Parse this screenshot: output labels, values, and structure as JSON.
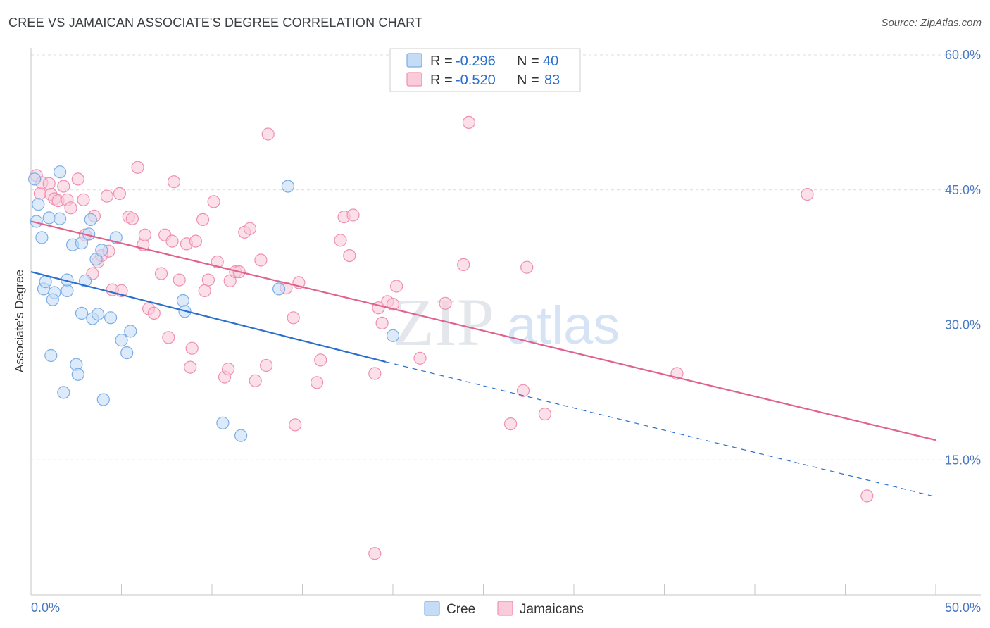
{
  "title": "CREE VS JAMAICAN ASSOCIATE'S DEGREE CORRELATION CHART",
  "source": "Source: ZipAtlas.com",
  "watermark": {
    "zip": "ZIP",
    "atlas": "atlas"
  },
  "legend_top": [
    {
      "r_label": "R =",
      "r_value": "-0.296",
      "n_label": "N =",
      "n_value": "40",
      "color": "#7aaee8",
      "fill": "#c5dcf7"
    },
    {
      "r_label": "R =",
      "r_value": "-0.520",
      "n_label": "N =",
      "n_value": "83",
      "color": "#ef8fb0",
      "fill": "#f9cbdb"
    }
  ],
  "legend_bottom": [
    {
      "label": "Cree",
      "color": "#7aaee8",
      "fill": "#c5dcf7"
    },
    {
      "label": "Jamaicans",
      "color": "#ef8fb0",
      "fill": "#f9cbdb"
    }
  ],
  "chart_data": {
    "type": "scatter",
    "title": "CREE VS JAMAICAN ASSOCIATE'S DEGREE CORRELATION CHART",
    "xlabel": "",
    "ylabel": "Associate's Degree",
    "xlim": [
      0,
      50
    ],
    "ylim": [
      0,
      60
    ],
    "x_tick_labels": [
      "0.0%",
      "50.0%"
    ],
    "y_ticks": [
      15,
      30,
      45,
      60
    ],
    "y_tick_labels": [
      "15.0%",
      "30.0%",
      "45.0%",
      "60.0%"
    ],
    "grid": true,
    "series": [
      {
        "name": "Cree",
        "color": "#7aaee8",
        "fill": "#c5dcf7",
        "line_color": "#2a6fcc",
        "trend": {
          "x0": 0,
          "y0": 35.9,
          "x1": 19.6,
          "y1": 25.9,
          "dashed_to_x": 50,
          "dashed_to_y": 10.9
        },
        "points": [
          [
            0.2,
            46.2
          ],
          [
            0.4,
            43.4
          ],
          [
            0.3,
            41.5
          ],
          [
            0.6,
            39.7
          ],
          [
            1.6,
            47.0
          ],
          [
            1.0,
            41.9
          ],
          [
            1.6,
            41.8
          ],
          [
            0.7,
            34.0
          ],
          [
            0.8,
            34.8
          ],
          [
            1.3,
            33.6
          ],
          [
            1.2,
            32.8
          ],
          [
            2.0,
            33.8
          ],
          [
            2.0,
            35.0
          ],
          [
            2.3,
            38.9
          ],
          [
            2.8,
            39.1
          ],
          [
            3.0,
            34.9
          ],
          [
            3.2,
            40.1
          ],
          [
            3.3,
            41.7
          ],
          [
            3.6,
            37.3
          ],
          [
            3.9,
            38.3
          ],
          [
            4.7,
            39.7
          ],
          [
            2.8,
            31.3
          ],
          [
            3.4,
            30.7
          ],
          [
            3.7,
            31.2
          ],
          [
            4.4,
            30.8
          ],
          [
            1.1,
            26.6
          ],
          [
            2.5,
            25.6
          ],
          [
            2.6,
            24.5
          ],
          [
            1.8,
            22.5
          ],
          [
            4.0,
            21.7
          ],
          [
            5.0,
            28.3
          ],
          [
            5.3,
            26.9
          ],
          [
            5.5,
            29.3
          ],
          [
            8.4,
            32.7
          ],
          [
            8.5,
            31.5
          ],
          [
            10.6,
            19.1
          ],
          [
            11.6,
            17.7
          ],
          [
            13.7,
            34.0
          ],
          [
            14.2,
            45.4
          ],
          [
            20.0,
            28.8
          ]
        ]
      },
      {
        "name": "Jamaicans",
        "color": "#ef8fb0",
        "fill": "#f9cbdb",
        "line_color": "#e0628f",
        "trend": {
          "x0": 0,
          "y0": 41.5,
          "x1": 50,
          "y1": 17.2
        },
        "points": [
          [
            0.3,
            46.6
          ],
          [
            0.5,
            44.6
          ],
          [
            0.6,
            45.8
          ],
          [
            1.0,
            45.7
          ],
          [
            1.1,
            44.5
          ],
          [
            1.3,
            44.0
          ],
          [
            1.5,
            43.8
          ],
          [
            1.8,
            45.4
          ],
          [
            2.0,
            43.9
          ],
          [
            2.2,
            43.0
          ],
          [
            2.6,
            46.2
          ],
          [
            2.9,
            43.9
          ],
          [
            3.5,
            42.1
          ],
          [
            3.0,
            40.0
          ],
          [
            3.4,
            35.7
          ],
          [
            3.7,
            37.0
          ],
          [
            3.9,
            37.7
          ],
          [
            4.3,
            38.2
          ],
          [
            4.2,
            44.3
          ],
          [
            4.9,
            44.6
          ],
          [
            5.0,
            33.8
          ],
          [
            5.4,
            42.0
          ],
          [
            5.6,
            41.8
          ],
          [
            5.9,
            47.5
          ],
          [
            6.2,
            38.9
          ],
          [
            6.3,
            40.0
          ],
          [
            6.5,
            31.8
          ],
          [
            6.8,
            31.3
          ],
          [
            7.2,
            35.7
          ],
          [
            7.4,
            40.0
          ],
          [
            7.6,
            28.6
          ],
          [
            7.8,
            39.3
          ],
          [
            7.9,
            45.9
          ],
          [
            8.2,
            35.0
          ],
          [
            8.6,
            39.0
          ],
          [
            8.8,
            25.3
          ],
          [
            8.9,
            27.4
          ],
          [
            9.1,
            39.3
          ],
          [
            9.5,
            41.7
          ],
          [
            9.6,
            33.8
          ],
          [
            9.8,
            35.0
          ],
          [
            10.1,
            43.7
          ],
          [
            10.3,
            37.0
          ],
          [
            10.7,
            24.2
          ],
          [
            10.9,
            25.1
          ],
          [
            11.0,
            34.9
          ],
          [
            11.3,
            35.9
          ],
          [
            11.5,
            35.9
          ],
          [
            11.8,
            40.3
          ],
          [
            12.1,
            40.7
          ],
          [
            12.7,
            37.2
          ],
          [
            13.0,
            25.5
          ],
          [
            13.1,
            51.2
          ],
          [
            14.1,
            34.1
          ],
          [
            14.5,
            30.8
          ],
          [
            14.6,
            18.9
          ],
          [
            14.8,
            34.7
          ],
          [
            15.8,
            23.6
          ],
          [
            16.0,
            26.1
          ],
          [
            17.1,
            39.4
          ],
          [
            17.3,
            42.0
          ],
          [
            17.6,
            37.7
          ],
          [
            17.8,
            42.2
          ],
          [
            19.0,
            24.6
          ],
          [
            19.2,
            31.9
          ],
          [
            19.4,
            30.2
          ],
          [
            19.7,
            32.6
          ],
          [
            20.0,
            32.3
          ],
          [
            20.2,
            34.3
          ],
          [
            21.5,
            26.3
          ],
          [
            22.9,
            32.4
          ],
          [
            23.9,
            36.7
          ],
          [
            24.2,
            52.5
          ],
          [
            26.5,
            19.0
          ],
          [
            27.2,
            22.7
          ],
          [
            27.4,
            36.4
          ],
          [
            28.4,
            20.1
          ],
          [
            35.7,
            24.6
          ],
          [
            42.9,
            44.5
          ],
          [
            46.2,
            11.0
          ],
          [
            19.0,
            4.6
          ],
          [
            4.5,
            33.9
          ],
          [
            12.4,
            23.8
          ]
        ]
      }
    ]
  }
}
